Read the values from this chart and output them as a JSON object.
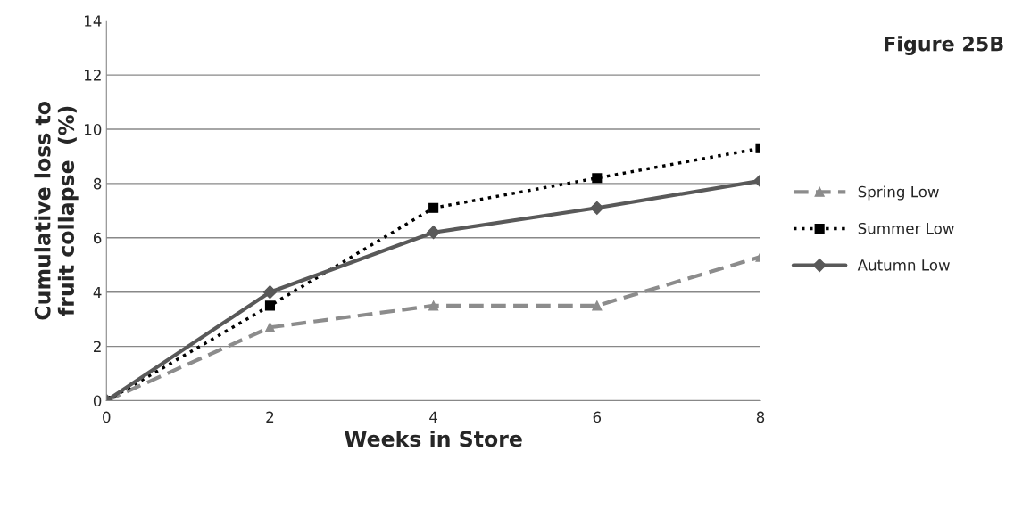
{
  "chart_data": {
    "type": "line",
    "xlabel": "Weeks in Store",
    "ylabel": "Cumulative loss to\nfruit collapse  (%)",
    "annotations": [
      "Figure 25B"
    ],
    "x": [
      0,
      2,
      4,
      6,
      8
    ],
    "xlim": [
      0,
      8
    ],
    "xticks": [
      0,
      2,
      4,
      6,
      8
    ],
    "ylim": [
      0,
      14
    ],
    "yticks": [
      0,
      2,
      4,
      6,
      8,
      10,
      12,
      14
    ],
    "grid": "y",
    "legend": "right",
    "series": [
      {
        "name": "Spring Low",
        "color": "#8c8c8c",
        "marker": "triangle",
        "line_style": "dashed",
        "values": [
          0,
          2.7,
          3.5,
          3.5,
          5.3
        ]
      },
      {
        "name": "Summer Low",
        "color": "#000000",
        "marker": "square",
        "line_style": "dotted",
        "values": [
          0,
          3.5,
          7.1,
          8.2,
          9.3
        ]
      },
      {
        "name": "Autumn Low",
        "color": "#595959",
        "marker": "diamond",
        "line_style": "solid",
        "values": [
          0,
          4.0,
          6.2,
          7.1,
          8.1
        ]
      }
    ]
  }
}
